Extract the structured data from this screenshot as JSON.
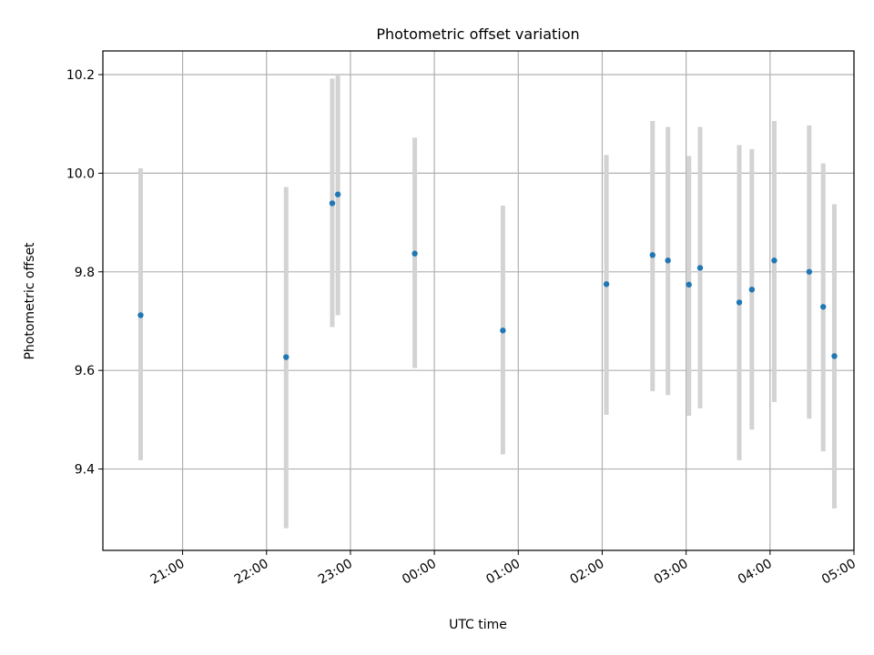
{
  "chart_data": {
    "type": "scatter",
    "title": "Photometric offset variation",
    "xlabel": "UTC time",
    "ylabel": "Photometric offset",
    "x_axis": "time",
    "x_tick_labels": [
      "21:00",
      "22:00",
      "23:00",
      "00:00",
      "01:00",
      "02:00",
      "03:00",
      "04:00",
      "05:00"
    ],
    "y_ticks": [
      9.4,
      9.6,
      9.8,
      10.0,
      10.2
    ],
    "y_tick_labels": [
      "9.4",
      "9.6",
      "9.8",
      "10.0",
      "10.2"
    ],
    "xlim": [
      "20:03",
      "05:00"
    ],
    "ylim": [
      9.235,
      10.248
    ],
    "grid": true,
    "legend": "none",
    "series": [
      {
        "marker_color": "#1f77b4",
        "errorbar_color": "#d3d3d3",
        "points": [
          {
            "x": "20:30",
            "y": 9.712,
            "yerr_low": 9.418,
            "yerr_high": 10.01
          },
          {
            "x": "22:14",
            "y": 9.627,
            "yerr_low": 9.28,
            "yerr_high": 9.972
          },
          {
            "x": "22:47",
            "y": 9.939,
            "yerr_low": 9.688,
            "yerr_high": 10.192
          },
          {
            "x": "22:51",
            "y": 9.957,
            "yerr_low": 9.712,
            "yerr_high": 10.2
          },
          {
            "x": "23:46",
            "y": 9.837,
            "yerr_low": 9.605,
            "yerr_high": 10.072
          },
          {
            "x": "00:49",
            "y": 9.681,
            "yerr_low": 9.43,
            "yerr_high": 9.934
          },
          {
            "x": "02:03",
            "y": 9.775,
            "yerr_low": 9.51,
            "yerr_high": 10.037
          },
          {
            "x": "02:36",
            "y": 9.834,
            "yerr_low": 9.558,
            "yerr_high": 10.106
          },
          {
            "x": "02:47",
            "y": 9.823,
            "yerr_low": 9.55,
            "yerr_high": 10.094
          },
          {
            "x": "03:02",
            "y": 9.774,
            "yerr_low": 9.508,
            "yerr_high": 10.035
          },
          {
            "x": "03:10",
            "y": 9.808,
            "yerr_low": 9.523,
            "yerr_high": 10.094
          },
          {
            "x": "03:38",
            "y": 9.738,
            "yerr_low": 9.418,
            "yerr_high": 10.057
          },
          {
            "x": "03:47",
            "y": 9.764,
            "yerr_low": 9.48,
            "yerr_high": 10.049
          },
          {
            "x": "04:03",
            "y": 9.823,
            "yerr_low": 9.536,
            "yerr_high": 10.106
          },
          {
            "x": "04:28",
            "y": 9.8,
            "yerr_low": 9.502,
            "yerr_high": 10.097
          },
          {
            "x": "04:38",
            "y": 9.729,
            "yerr_low": 9.436,
            "yerr_high": 10.02
          },
          {
            "x": "04:46",
            "y": 9.629,
            "yerr_low": 9.32,
            "yerr_high": 9.937
          }
        ]
      }
    ]
  }
}
